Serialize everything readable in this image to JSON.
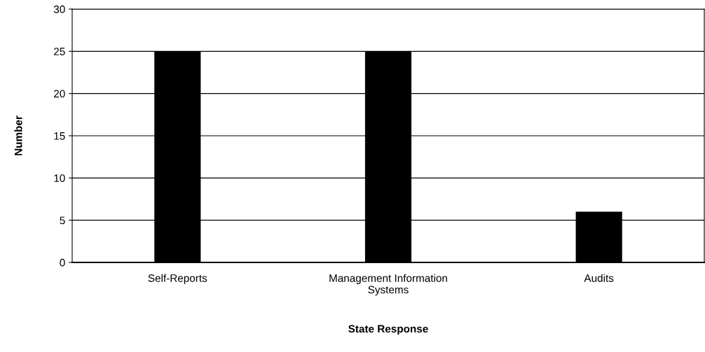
{
  "chart_data": {
    "type": "bar",
    "xlabel": "State Response",
    "ylabel": "Number",
    "categories": [
      "Self-Reports",
      "Management Information\nSystems",
      "Audits"
    ],
    "values": [
      25,
      25,
      6
    ],
    "color": "#000000",
    "ylim": [
      0,
      30
    ],
    "yticks": [
      0,
      5,
      10,
      15,
      20,
      25,
      30
    ],
    "grid": "y",
    "legend": false
  }
}
